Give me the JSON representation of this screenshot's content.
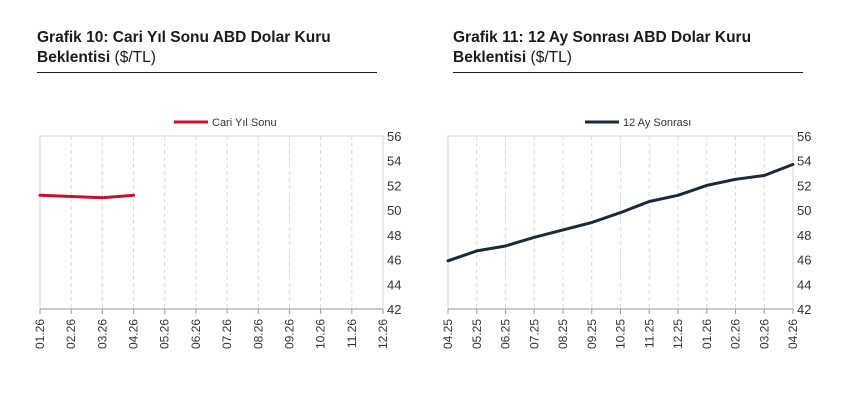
{
  "charts": [
    {
      "title_bold": "Grafik 10: Cari Yıl Sonu ABD Dolar Kuru Beklentisi",
      "title_unit": "($/TL)",
      "chart_data": {
        "type": "line",
        "categories": [
          "01.26",
          "02.26",
          "03.26",
          "04.26",
          "05.26",
          "06.26",
          "07.26",
          "08.26",
          "09.26",
          "10.26",
          "11.26",
          "12.26"
        ],
        "series": [
          {
            "name": "Cari Yıl Sonu",
            "color": "#c8102e",
            "values": [
              51.2,
              51.1,
              51.0,
              51.2,
              null,
              null,
              null,
              null,
              null,
              null,
              null,
              null
            ]
          }
        ],
        "ylim": [
          42,
          56
        ],
        "yticks": [
          42,
          44,
          46,
          48,
          50,
          52,
          54,
          56
        ],
        "y_axis_side": "right",
        "grid": "vertical",
        "legend": "top-center"
      }
    },
    {
      "title_bold": "Grafik 11: 12 Ay Sonrası ABD Dolar Kuru Beklentisi",
      "title_unit": "($/TL)",
      "chart_data": {
        "type": "line",
        "categories": [
          "04.25",
          "05.25",
          "06.25",
          "07.25",
          "08.25",
          "09.25",
          "10.25",
          "11.25",
          "12.25",
          "01.26",
          "02.26",
          "03.26",
          "04.26"
        ],
        "series": [
          {
            "name": "12 Ay Sonrası",
            "color": "#1b2a3a",
            "values": [
              45.9,
              46.7,
              47.1,
              47.8,
              48.4,
              49.0,
              49.8,
              50.7,
              51.2,
              52.0,
              52.5,
              52.8,
              53.7
            ]
          }
        ],
        "ylim": [
          42,
          56
        ],
        "yticks": [
          42,
          44,
          46,
          48,
          50,
          52,
          54,
          56
        ],
        "y_axis_side": "right",
        "grid": "vertical",
        "legend": "top-center"
      }
    }
  ]
}
